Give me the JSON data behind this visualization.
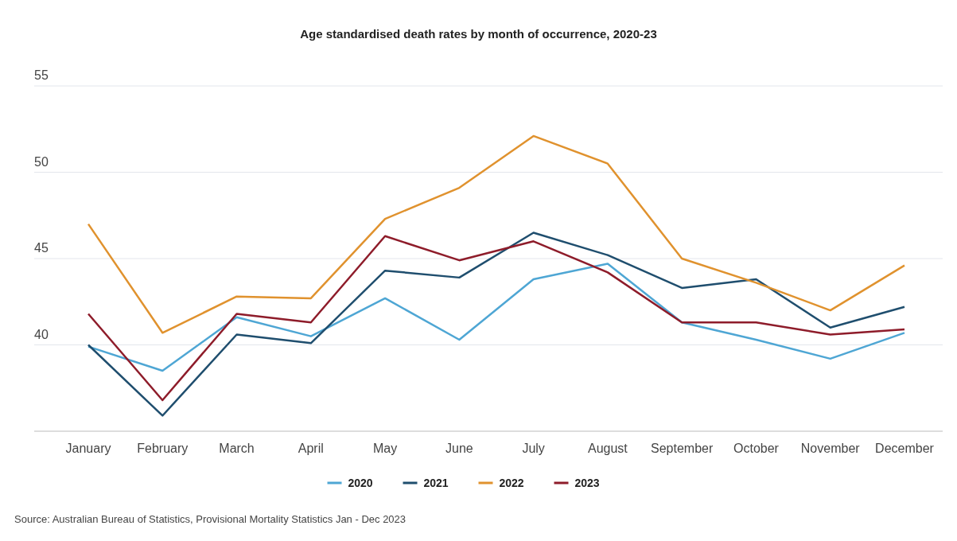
{
  "chart_data": {
    "type": "line",
    "title": "Age standardised death rates by month of occurrence, 2020-23",
    "categories": [
      "January",
      "February",
      "March",
      "April",
      "May",
      "June",
      "July",
      "August",
      "September",
      "October",
      "November",
      "December"
    ],
    "series": [
      {
        "name": "2020",
        "color": "#4ea6d4",
        "values": [
          39.9,
          38.5,
          41.6,
          40.5,
          42.7,
          40.3,
          43.8,
          44.7,
          41.3,
          40.3,
          39.2,
          40.7
        ]
      },
      {
        "name": "2021",
        "color": "#1f4e6e",
        "values": [
          40.0,
          35.9,
          40.6,
          40.1,
          44.3,
          43.9,
          46.5,
          45.2,
          43.3,
          43.8,
          41.0,
          42.2
        ]
      },
      {
        "name": "2022",
        "color": "#e0922e",
        "values": [
          47.0,
          40.7,
          42.8,
          42.7,
          47.3,
          49.1,
          52.1,
          50.5,
          45.0,
          43.6,
          42.0,
          44.6
        ]
      },
      {
        "name": "2023",
        "color": "#8e1c2a",
        "values": [
          41.8,
          36.8,
          41.8,
          41.3,
          46.3,
          44.9,
          46.0,
          44.2,
          41.3,
          41.3,
          40.6,
          40.9
        ]
      }
    ],
    "ylim": [
      35,
      55
    ],
    "yticks": [
      40,
      45,
      50,
      55
    ],
    "grid": "y",
    "legend": "bottom",
    "marker": "none",
    "line_style": "solid",
    "annotations": [
      "Source: Australian Bureau of Statistics, Provisional Mortality Statistics Jan - Dec 2023"
    ]
  }
}
